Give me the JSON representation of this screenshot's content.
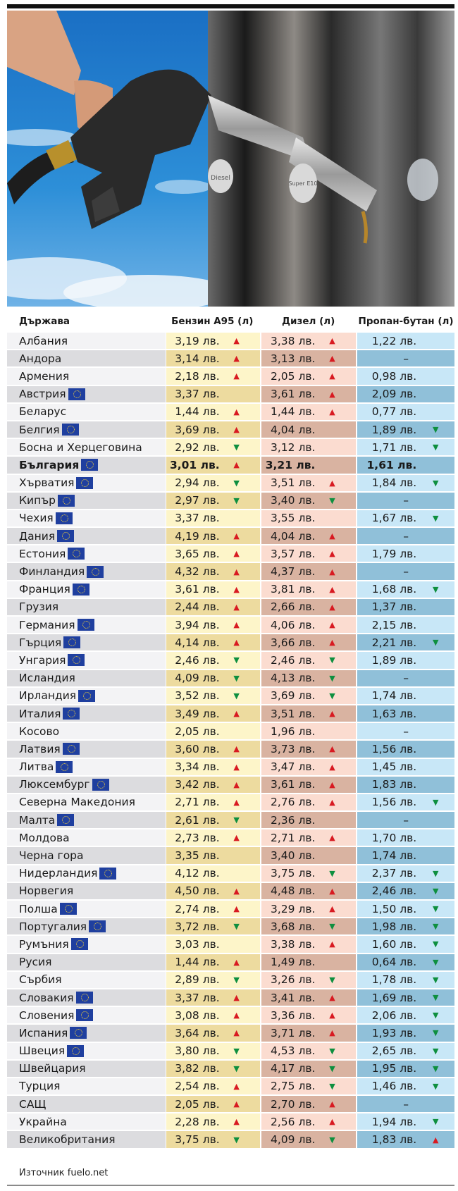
{
  "photo": {
    "description_icon": "fuel-nozzle-photo",
    "pump_labels": [
      "Diesel",
      "Super E10"
    ]
  },
  "table": {
    "headers": [
      "Държава",
      "Бензин А95 (л)",
      "Дизел (л)",
      "Пропан-бутан (л)"
    ],
    "rows": [
      {
        "country": "Албания",
        "eu": false,
        "a95": "3,19 лв.",
        "a95_trend": "up",
        "diesel": "3,38 лв.",
        "diesel_trend": "up",
        "lpg": "1,22 лв.",
        "lpg_trend": ""
      },
      {
        "country": "Андора",
        "eu": false,
        "a95": "3,14 лв.",
        "a95_trend": "up",
        "diesel": "3,13 лв.",
        "diesel_trend": "up",
        "lpg": "–",
        "lpg_trend": ""
      },
      {
        "country": "Армения",
        "eu": false,
        "a95": "2,18 лв.",
        "a95_trend": "up",
        "diesel": "2,05 лв.",
        "diesel_trend": "up",
        "lpg": "0,98 лв.",
        "lpg_trend": ""
      },
      {
        "country": "Австрия",
        "eu": true,
        "a95": "3,37 лв.",
        "a95_trend": "",
        "diesel": "3,61 лв.",
        "diesel_trend": "up",
        "lpg": "2,09 лв.",
        "lpg_trend": ""
      },
      {
        "country": "Беларус",
        "eu": false,
        "a95": "1,44 лв.",
        "a95_trend": "up",
        "diesel": "1,44 лв.",
        "diesel_trend": "up",
        "lpg": "0,77 лв.",
        "lpg_trend": ""
      },
      {
        "country": "Белгия",
        "eu": true,
        "a95": "3,69 лв.",
        "a95_trend": "up",
        "diesel": "4,04 лв.",
        "diesel_trend": "",
        "lpg": "1,89 лв.",
        "lpg_trend": "down"
      },
      {
        "country": "Босна и Херцеговина",
        "eu": false,
        "a95": "2,92 лв.",
        "a95_trend": "down",
        "diesel": "3,12 лв.",
        "diesel_trend": "",
        "lpg": "1,71 лв.",
        "lpg_trend": "down"
      },
      {
        "country": "България",
        "eu": true,
        "bold": true,
        "a95": "3,01 лв.",
        "a95_trend": "up",
        "diesel": "3,21 лв.",
        "diesel_trend": "",
        "lpg": "1,61 лв.",
        "lpg_trend": ""
      },
      {
        "country": "Хърватия",
        "eu": true,
        "a95": "2,94 лв.",
        "a95_trend": "down",
        "diesel": "3,51 лв.",
        "diesel_trend": "up",
        "lpg": "1,84 лв.",
        "lpg_trend": "down"
      },
      {
        "country": "Кипър",
        "eu": true,
        "a95": "2,97 лв.",
        "a95_trend": "down",
        "diesel": "3,40 лв.",
        "diesel_trend": "down",
        "lpg": "–",
        "lpg_trend": ""
      },
      {
        "country": "Чехия",
        "eu": true,
        "a95": "3,37 лв.",
        "a95_trend": "",
        "diesel": "3,55 лв.",
        "diesel_trend": "",
        "lpg": "1,67 лв.",
        "lpg_trend": "down"
      },
      {
        "country": "Дания",
        "eu": true,
        "a95": "4,19 лв.",
        "a95_trend": "up",
        "diesel": "4,04 лв.",
        "diesel_trend": "up",
        "lpg": "–",
        "lpg_trend": ""
      },
      {
        "country": "Естония",
        "eu": true,
        "a95": "3,65 лв.",
        "a95_trend": "up",
        "diesel": "3,57 лв.",
        "diesel_trend": "up",
        "lpg": "1,79 лв.",
        "lpg_trend": ""
      },
      {
        "country": "Финландия",
        "eu": true,
        "a95": "4,32 лв.",
        "a95_trend": "up",
        "diesel": "4,37 лв.",
        "diesel_trend": "up",
        "lpg": "–",
        "lpg_trend": ""
      },
      {
        "country": "Франция",
        "eu": true,
        "a95": "3,61 лв.",
        "a95_trend": "up",
        "diesel": "3,81 лв.",
        "diesel_trend": "up",
        "lpg": "1,68 лв.",
        "lpg_trend": "down"
      },
      {
        "country": "Грузия",
        "eu": false,
        "a95": "2,44 лв.",
        "a95_trend": "up",
        "diesel": "2,66 лв.",
        "diesel_trend": "up",
        "lpg": "1,37 лв.",
        "lpg_trend": ""
      },
      {
        "country": "Германия",
        "eu": true,
        "a95": "3,94 лв.",
        "a95_trend": "up",
        "diesel": "4,06 лв.",
        "diesel_trend": "up",
        "lpg": "2,15 лв.",
        "lpg_trend": ""
      },
      {
        "country": "Гърция",
        "eu": true,
        "a95": "4,14 лв.",
        "a95_trend": "up",
        "diesel": "3,66 лв.",
        "diesel_trend": "up",
        "lpg": "2,21 лв.",
        "lpg_trend": "down"
      },
      {
        "country": "Унгария",
        "eu": true,
        "a95": "2,46 лв.",
        "a95_trend": "down",
        "diesel": "2,46 лв.",
        "diesel_trend": "down",
        "lpg": "1,89 лв.",
        "lpg_trend": ""
      },
      {
        "country": "Исландия",
        "eu": false,
        "a95": "4,09 лв.",
        "a95_trend": "down",
        "diesel": "4,13 лв.",
        "diesel_trend": "down",
        "lpg": "–",
        "lpg_trend": ""
      },
      {
        "country": "Ирландия",
        "eu": true,
        "a95": "3,52 лв.",
        "a95_trend": "down",
        "diesel": "3,69 лв.",
        "diesel_trend": "down",
        "lpg": "1,74 лв.",
        "lpg_trend": ""
      },
      {
        "country": "Италия",
        "eu": true,
        "a95": "3,49 лв.",
        "a95_trend": "up",
        "diesel": "3,51 лв.",
        "diesel_trend": "up",
        "lpg": "1,63 лв.",
        "lpg_trend": ""
      },
      {
        "country": "Косово",
        "eu": false,
        "a95": "2,05 лв.",
        "a95_trend": "",
        "diesel": "1,96 лв.",
        "diesel_trend": "",
        "lpg": "–",
        "lpg_trend": ""
      },
      {
        "country": "Латвия",
        "eu": true,
        "a95": "3,60 лв.",
        "a95_trend": "up",
        "diesel": "3,73 лв.",
        "diesel_trend": "up",
        "lpg": "1,56 лв.",
        "lpg_trend": ""
      },
      {
        "country": "Литва",
        "eu": true,
        "a95": "3,34 лв.",
        "a95_trend": "up",
        "diesel": "3,47 лв.",
        "diesel_trend": "up",
        "lpg": "1,45 лв.",
        "lpg_trend": ""
      },
      {
        "country": "Люксембург",
        "eu": true,
        "a95": "3,42 лв.",
        "a95_trend": "up",
        "diesel": "3,61 лв.",
        "diesel_trend": "up",
        "lpg": "1,83 лв.",
        "lpg_trend": ""
      },
      {
        "country": "Северна Македония",
        "eu": false,
        "a95": "2,71 лв.",
        "a95_trend": "up",
        "diesel": "2,76 лв.",
        "diesel_trend": "up",
        "lpg": "1,56 лв.",
        "lpg_trend": "down"
      },
      {
        "country": "Малта",
        "eu": true,
        "a95": "2,61 лв.",
        "a95_trend": "down",
        "diesel": "2,36 лв.",
        "diesel_trend": "",
        "lpg": "–",
        "lpg_trend": ""
      },
      {
        "country": "Молдова",
        "eu": false,
        "a95": "2,73 лв.",
        "a95_trend": "up",
        "diesel": "2,71 лв.",
        "diesel_trend": "up",
        "lpg": "1,70 лв.",
        "lpg_trend": ""
      },
      {
        "country": "Черна гора",
        "eu": false,
        "a95": "3,35 лв.",
        "a95_trend": "",
        "diesel": "3,40 лв.",
        "diesel_trend": "",
        "lpg": "1,74 лв.",
        "lpg_trend": ""
      },
      {
        "country": "Нидерландия",
        "eu": true,
        "a95": "4,12 лв.",
        "a95_trend": "",
        "diesel": "3,75 лв.",
        "diesel_trend": "down",
        "lpg": "2,37 лв.",
        "lpg_trend": "down"
      },
      {
        "country": "Норвегия",
        "eu": false,
        "a95": "4,50 лв.",
        "a95_trend": "up",
        "diesel": "4,48 лв.",
        "diesel_trend": "up",
        "lpg": "2,46 лв.",
        "lpg_trend": "down"
      },
      {
        "country": "Полша",
        "eu": true,
        "a95": "2,74 лв.",
        "a95_trend": "up",
        "diesel": "3,29 лв.",
        "diesel_trend": "up",
        "lpg": "1,50 лв.",
        "lpg_trend": "down"
      },
      {
        "country": "Португалия",
        "eu": true,
        "a95": "3,72 лв.",
        "a95_trend": "down",
        "diesel": "3,68 лв.",
        "diesel_trend": "down",
        "lpg": "1,98 лв.",
        "lpg_trend": "down"
      },
      {
        "country": "Румъния",
        "eu": true,
        "a95": "3,03 лв.",
        "a95_trend": "",
        "diesel": "3,38 лв.",
        "diesel_trend": "up",
        "lpg": "1,60 лв.",
        "lpg_trend": "down"
      },
      {
        "country": "Русия",
        "eu": false,
        "a95": "1,44 лв.",
        "a95_trend": "up",
        "diesel": "1,49 лв.",
        "diesel_trend": "",
        "lpg": "0,64 лв.",
        "lpg_trend": "down"
      },
      {
        "country": "Сърбия",
        "eu": false,
        "a95": "2,89 лв.",
        "a95_trend": "down",
        "diesel": "3,26 лв.",
        "diesel_trend": "down",
        "lpg": "1,78 лв.",
        "lpg_trend": "down"
      },
      {
        "country": "Словакия",
        "eu": true,
        "a95": "3,37 лв.",
        "a95_trend": "up",
        "diesel": "3,41 лв.",
        "diesel_trend": "up",
        "lpg": "1,69 лв.",
        "lpg_trend": "down"
      },
      {
        "country": "Словения",
        "eu": true,
        "a95": "3,08 лв.",
        "a95_trend": "up",
        "diesel": "3,36 лв.",
        "diesel_trend": "up",
        "lpg": "2,06 лв.",
        "lpg_trend": "down"
      },
      {
        "country": "Испания",
        "eu": true,
        "a95": "3,64 лв.",
        "a95_trend": "up",
        "diesel": "3,71 лв.",
        "diesel_trend": "up",
        "lpg": "1,93 лв.",
        "lpg_trend": "down"
      },
      {
        "country": "Швеция",
        "eu": true,
        "a95": "3,80 лв.",
        "a95_trend": "down",
        "diesel": "4,53 лв.",
        "diesel_trend": "down",
        "lpg": "2,65 лв.",
        "lpg_trend": "down"
      },
      {
        "country": "Швейцария",
        "eu": false,
        "a95": "3,82 лв.",
        "a95_trend": "down",
        "diesel": "4,17 лв.",
        "diesel_trend": "down",
        "lpg": "1,95 лв.",
        "lpg_trend": "down"
      },
      {
        "country": "Турция",
        "eu": false,
        "a95": "2,54 лв.",
        "a95_trend": "up",
        "diesel": "2,75 лв.",
        "diesel_trend": "down",
        "lpg": "1,46 лв.",
        "lpg_trend": "down"
      },
      {
        "country": "САЩ",
        "eu": false,
        "a95": "2,05 лв.",
        "a95_trend": "up",
        "diesel": "2,70 лв.",
        "diesel_trend": "up",
        "lpg": "–",
        "lpg_trend": ""
      },
      {
        "country": "Украйна",
        "eu": false,
        "a95": "2,28 лв.",
        "a95_trend": "up",
        "diesel": "2,56 лв.",
        "diesel_trend": "up",
        "lpg": "1,94 лв.",
        "lpg_trend": "down"
      },
      {
        "country": "Великобритания",
        "eu": false,
        "a95": "3,75 лв.",
        "a95_trend": "down",
        "diesel": "4,09 лв.",
        "diesel_trend": "down",
        "lpg": "1,83 лв.",
        "lpg_trend": "up"
      }
    ]
  },
  "source": "Източник fuelo.net",
  "colors": {
    "up": "#d81a21",
    "down": "#0e8f3f",
    "eu_flag": "#1f3f9f"
  }
}
